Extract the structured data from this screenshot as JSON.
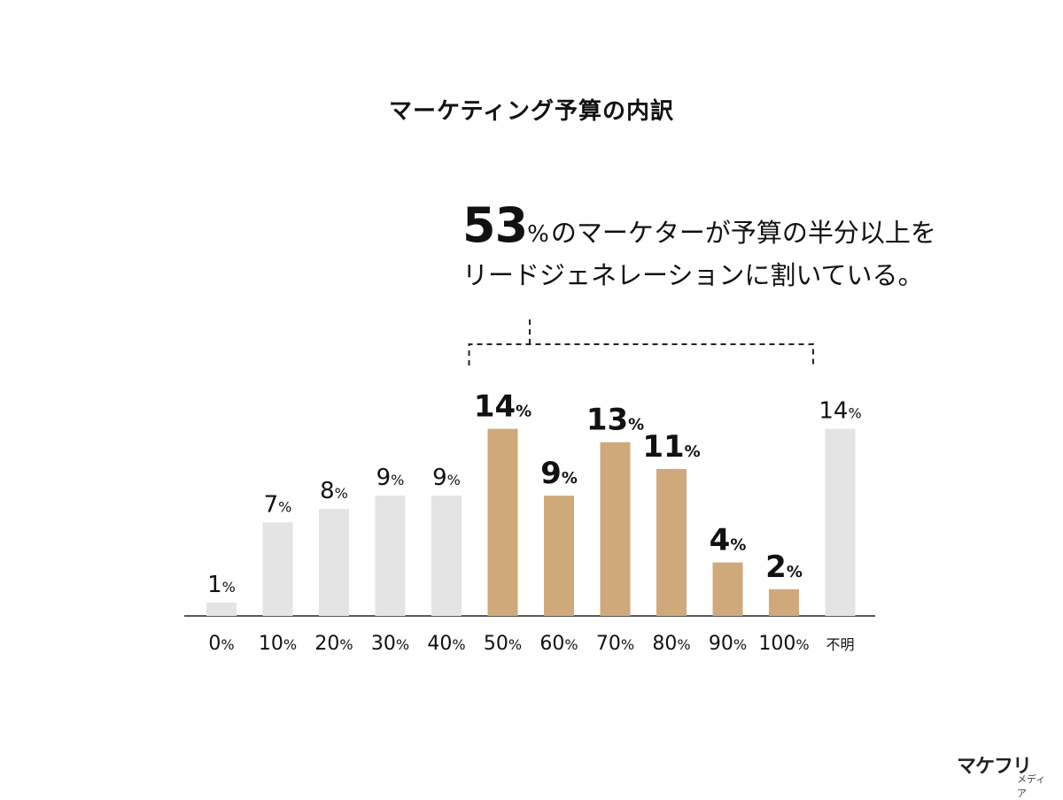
{
  "title": "マーケティング予算の内訳",
  "callout": {
    "value": "53",
    "unit": "%",
    "line1": "のマーケターが予算の半分以上を",
    "line2": "リードジェネレーションに割いている。"
  },
  "logo": {
    "main": "マケフリ",
    "sub": "メディア"
  },
  "colors": {
    "highlight": "#CFA97A",
    "muted": "#E4E4E4",
    "axis": "#222222",
    "text": "#111111"
  },
  "chart_data": {
    "type": "bar",
    "categories": [
      "0%",
      "10%",
      "20%",
      "30%",
      "40%",
      "50%",
      "60%",
      "70%",
      "80%",
      "90%",
      "100%",
      "不明"
    ],
    "values": [
      1,
      7,
      8,
      9,
      9,
      14,
      9,
      13,
      11,
      4,
      2,
      14
    ],
    "value_labels": [
      "1%",
      "7%",
      "8%",
      "9%",
      "9%",
      "14%",
      "9%",
      "13%",
      "11%",
      "4%",
      "2%",
      "14%"
    ],
    "highlighted": [
      false,
      false,
      false,
      false,
      false,
      true,
      true,
      true,
      true,
      true,
      true,
      false
    ],
    "bracket_range": [
      "50%",
      "100%"
    ],
    "ylim": [
      0,
      14
    ],
    "grid": false,
    "legend": "none",
    "xlabel": "",
    "ylabel": ""
  }
}
